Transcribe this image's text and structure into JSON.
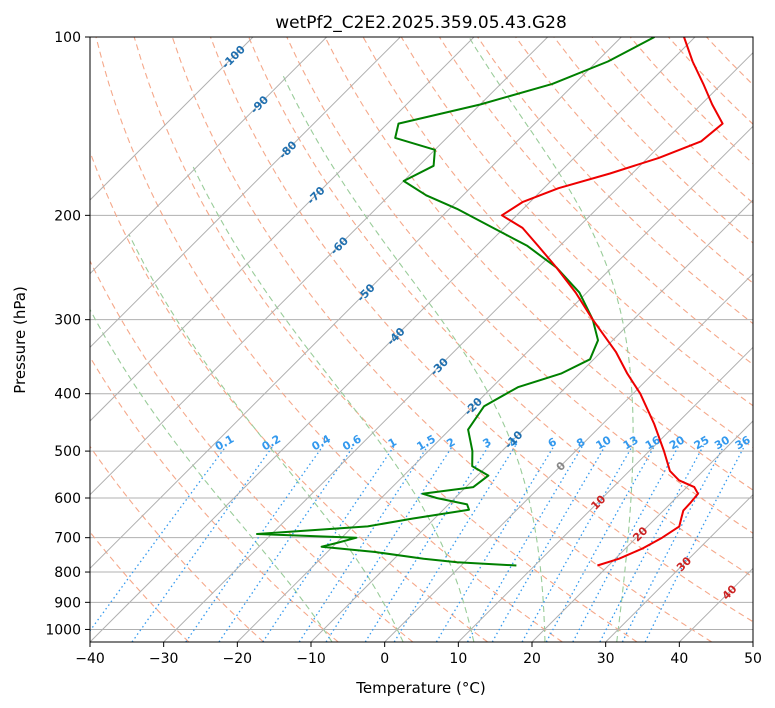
{
  "chart_data": {
    "type": "skew-t",
    "title": "wetPf2_C2E2.2025.359.05.43.G28",
    "xlabel": "Temperature (°C)",
    "ylabel": "Pressure (hPa)",
    "xlim": [
      -40,
      50
    ],
    "ylim": [
      1050,
      100
    ],
    "x_ticks": [
      -40,
      -30,
      -20,
      -10,
      0,
      10,
      20,
      30,
      40,
      50
    ],
    "x_tick_labels": [
      "−40",
      "−30",
      "−20",
      "−10",
      "0",
      "10",
      "20",
      "30",
      "40",
      "50"
    ],
    "y_ticks": [
      100,
      200,
      300,
      400,
      500,
      600,
      700,
      800,
      900,
      1000
    ],
    "y_tick_labels": [
      "100",
      "200",
      "300",
      "400",
      "500",
      "600",
      "700",
      "800",
      "900",
      "1000"
    ],
    "colors": {
      "temperature": "#ee0000",
      "dewpoint": "#008000",
      "isotherm_labels": "#1f6faf",
      "mixing_ratio": "#3399ee",
      "dry_adiabat": "#f5a88a",
      "moist_adiabat": "#99cc99",
      "grid": "#b0b0b0"
    },
    "temperature_profile": {
      "name": "Temperature",
      "points": [
        {
          "p": 780,
          "t": 18.5
        },
        {
          "p": 760,
          "t": 20.5
        },
        {
          "p": 730,
          "t": 22.3
        },
        {
          "p": 700,
          "t": 23.5
        },
        {
          "p": 670,
          "t": 24.3
        },
        {
          "p": 650,
          "t": 23.5
        },
        {
          "p": 630,
          "t": 22.7
        },
        {
          "p": 610,
          "t": 22.6
        },
        {
          "p": 590,
          "t": 22.4
        },
        {
          "p": 575,
          "t": 21.0
        },
        {
          "p": 560,
          "t": 18.0
        },
        {
          "p": 540,
          "t": 15.5
        },
        {
          "p": 500,
          "t": 12.0
        },
        {
          "p": 450,
          "t": 7.0
        },
        {
          "p": 400,
          "t": 1.0
        },
        {
          "p": 370,
          "t": -3.5
        },
        {
          "p": 340,
          "t": -8.0
        },
        {
          "p": 300,
          "t": -15.5
        },
        {
          "p": 270,
          "t": -21.5
        },
        {
          "p": 245,
          "t": -27.5
        },
        {
          "p": 225,
          "t": -33.0
        },
        {
          "p": 210,
          "t": -37.5
        },
        {
          "p": 200,
          "t": -42.0
        },
        {
          "p": 190,
          "t": -41.0
        },
        {
          "p": 180,
          "t": -38.0
        },
        {
          "p": 170,
          "t": -33.0
        },
        {
          "p": 160,
          "t": -28.5
        },
        {
          "p": 150,
          "t": -25.0
        },
        {
          "p": 140,
          "t": -24.5
        },
        {
          "p": 130,
          "t": -28.5
        },
        {
          "p": 120,
          "t": -32.5
        },
        {
          "p": 110,
          "t": -37.0
        },
        {
          "p": 100,
          "t": -41.5
        }
      ]
    },
    "dewpoint_profile": {
      "name": "Dewpoint",
      "points": [
        {
          "p": 780,
          "t": 7.5
        },
        {
          "p": 770,
          "t": -1.0
        },
        {
          "p": 760,
          "t": -6.0
        },
        {
          "p": 740,
          "t": -13.5
        },
        {
          "p": 725,
          "t": -21.5
        },
        {
          "p": 715,
          "t": -20.0
        },
        {
          "p": 700,
          "t": -18.0
        },
        {
          "p": 690,
          "t": -32.0
        },
        {
          "p": 670,
          "t": -18.0
        },
        {
          "p": 650,
          "t": -13.0
        },
        {
          "p": 628,
          "t": -6.5
        },
        {
          "p": 615,
          "t": -7.5
        },
        {
          "p": 600,
          "t": -12.5
        },
        {
          "p": 590,
          "t": -15.0
        },
        {
          "p": 575,
          "t": -9.0
        },
        {
          "p": 550,
          "t": -8.5
        },
        {
          "p": 530,
          "t": -12.0
        },
        {
          "p": 500,
          "t": -14.0
        },
        {
          "p": 460,
          "t": -17.5
        },
        {
          "p": 420,
          "t": -18.5
        },
        {
          "p": 390,
          "t": -16.5
        },
        {
          "p": 370,
          "t": -12.5
        },
        {
          "p": 350,
          "t": -10.5
        },
        {
          "p": 325,
          "t": -12.0
        },
        {
          "p": 300,
          "t": -15.5
        },
        {
          "p": 270,
          "t": -21.0
        },
        {
          "p": 245,
          "t": -27.5
        },
        {
          "p": 225,
          "t": -34.5
        },
        {
          "p": 210,
          "t": -41.5
        },
        {
          "p": 195,
          "t": -49.0
        },
        {
          "p": 185,
          "t": -55.0
        },
        {
          "p": 175,
          "t": -60.0
        },
        {
          "p": 165,
          "t": -58.0
        },
        {
          "p": 155,
          "t": -60.0
        },
        {
          "p": 148,
          "t": -67.0
        },
        {
          "p": 140,
          "t": -68.5
        },
        {
          "p": 130,
          "t": -60.0
        },
        {
          "p": 120,
          "t": -53.0
        },
        {
          "p": 110,
          "t": -48.5
        },
        {
          "p": 100,
          "t": -45.5
        }
      ]
    },
    "isotherms": [
      -100,
      -90,
      -80,
      -70,
      -60,
      -50,
      -40,
      -30,
      -20,
      -10,
      0,
      10,
      20,
      30,
      40
    ],
    "isotherm_labels": [
      {
        "t": -100,
        "p": 108,
        "text": "-100",
        "color": "#1f6faf"
      },
      {
        "t": -90,
        "p": 130,
        "text": "-90",
        "color": "#1f6faf"
      },
      {
        "t": -80,
        "p": 155,
        "text": "-80",
        "color": "#1f6faf"
      },
      {
        "t": -70,
        "p": 185,
        "text": "-70",
        "color": "#1f6faf"
      },
      {
        "t": -60,
        "p": 225,
        "text": "-60",
        "color": "#1f6faf"
      },
      {
        "t": -50,
        "p": 270,
        "text": "-50",
        "color": "#1f6faf"
      },
      {
        "t": -40,
        "p": 320,
        "text": "-40",
        "color": "#1f6faf"
      },
      {
        "t": -30,
        "p": 360,
        "text": "-30",
        "color": "#1f6faf"
      },
      {
        "t": -20,
        "p": 420,
        "text": "-20",
        "color": "#1f6faf"
      },
      {
        "t": -10,
        "p": 478,
        "text": "-10",
        "color": "#1f6faf"
      },
      {
        "t": 0,
        "p": 530,
        "text": "0",
        "color": "#888888"
      },
      {
        "t": 10,
        "p": 610,
        "text": "10",
        "color": "#cc2222"
      },
      {
        "t": 20,
        "p": 690,
        "text": "20",
        "color": "#cc2222"
      },
      {
        "t": 30,
        "p": 775,
        "text": "30",
        "color": "#cc2222"
      },
      {
        "t": 40,
        "p": 865,
        "text": "40",
        "color": "#cc2222"
      }
    ],
    "mixing_ratios": [
      0.1,
      0.2,
      0.4,
      0.6,
      1,
      1.5,
      2,
      3,
      4,
      6,
      8,
      10,
      13,
      16,
      20,
      25,
      30,
      36
    ],
    "mixing_ratio_labels": [
      "0.1",
      "0.2",
      "0.4",
      "0.6",
      "1",
      "1.5",
      "2",
      "3",
      "4",
      "6",
      "8",
      "10",
      "13",
      "16",
      "20",
      "25",
      "30",
      "36"
    ],
    "mixing_ratio_label_pressure": 490,
    "dry_adiabats_theta_c": [
      -30,
      -20,
      -10,
      0,
      10,
      20,
      30,
      40,
      50,
      60,
      70,
      80,
      90,
      100,
      110,
      120,
      130,
      140,
      150,
      160,
      170,
      180
    ],
    "moist_adiabats_thetaw_c": [
      -10,
      0,
      10,
      20,
      30
    ],
    "grid": true,
    "skew": "45 degrees"
  }
}
